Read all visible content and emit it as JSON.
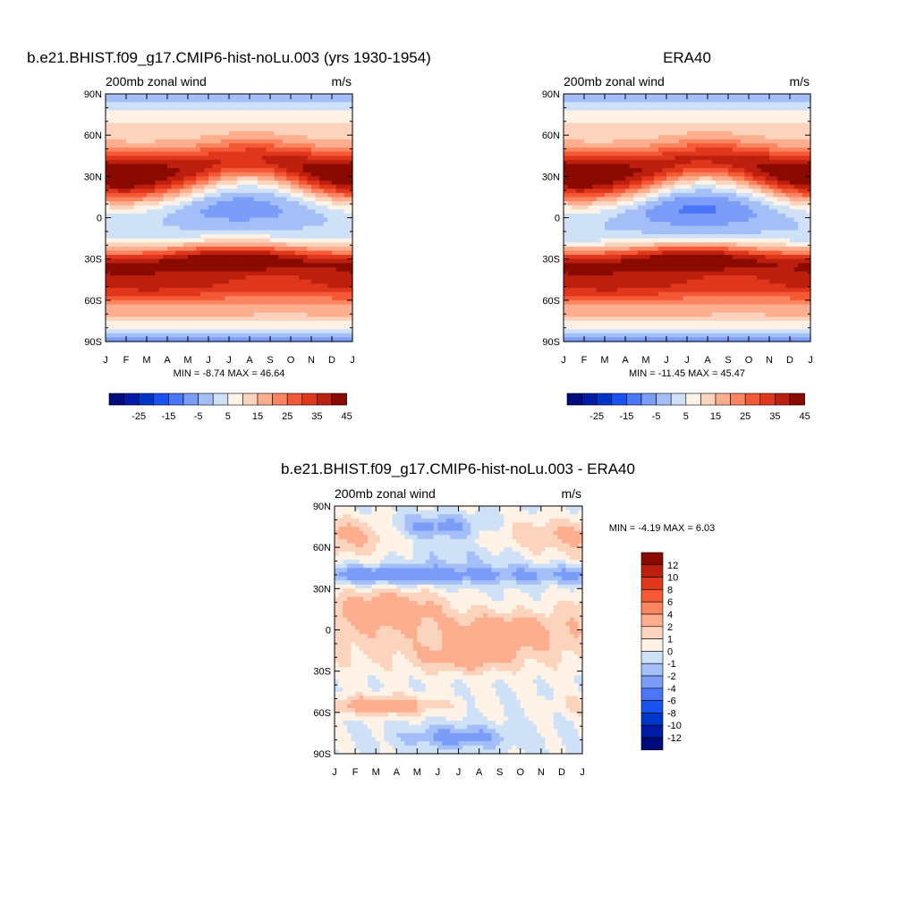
{
  "chart_data": [
    {
      "type": "heatmap",
      "title": "b.e21.BHIST.f09_g17.CMIP6-hist-noLu.003 (yrs 1930-1954)",
      "left_label": "200mb zonal wind",
      "units": "m/s",
      "x_ticks": [
        "J",
        "F",
        "M",
        "A",
        "M",
        "J",
        "J",
        "A",
        "S",
        "O",
        "N",
        "D",
        "J"
      ],
      "y_ticks": [
        "90N",
        "60N",
        "30N",
        "0",
        "30S",
        "60S",
        "90S"
      ],
      "xlim": [
        1,
        13
      ],
      "ylim": [
        -90,
        90
      ],
      "min": -8.74,
      "max": 46.64,
      "minmax_label": "MIN =  -8.74 MAX =  46.64",
      "levels": [
        -30,
        -25,
        -20,
        -15,
        -10,
        -5,
        0,
        5,
        10,
        15,
        20,
        25,
        30,
        35,
        40,
        45
      ],
      "colorbar_labels": [
        "-25",
        "-15",
        "-5",
        "5",
        "15",
        "25",
        "35",
        "45"
      ],
      "colors": [
        "#000c7d",
        "#001ba6",
        "#0035c9",
        "#1853f0",
        "#4a76f7",
        "#7b9df7",
        "#a4bff7",
        "#cfe1f7",
        "#fff2e6",
        "#fcd4bd",
        "#fcae8f",
        "#fb8461",
        "#f55835",
        "#e0361c",
        "#bd1f0e",
        "#8a0a00"
      ],
      "features": {
        "nh_jet_winter": {
          "lat": 30,
          "peak": 46.6
        },
        "sh_jet": {
          "lat": -30,
          "peak": 42
        },
        "tropical_easterlies": {
          "lat": 5,
          "min": -8.7
        }
      }
    },
    {
      "type": "heatmap",
      "title": "ERA40",
      "left_label": "200mb zonal wind",
      "units": "m/s",
      "x_ticks": [
        "J",
        "F",
        "M",
        "A",
        "M",
        "J",
        "J",
        "A",
        "S",
        "O",
        "N",
        "D",
        "J"
      ],
      "y_ticks": [
        "90N",
        "60N",
        "30N",
        "0",
        "30S",
        "60S",
        "90S"
      ],
      "xlim": [
        1,
        13
      ],
      "ylim": [
        -90,
        90
      ],
      "min": -11.45,
      "max": 45.47,
      "minmax_label": "MIN = -11.45 MAX =  45.47",
      "levels": [
        -30,
        -25,
        -20,
        -15,
        -10,
        -5,
        0,
        5,
        10,
        15,
        20,
        25,
        30,
        35,
        40,
        45
      ],
      "colorbar_labels": [
        "-25",
        "-15",
        "-5",
        "5",
        "15",
        "25",
        "35",
        "45"
      ],
      "colors": [
        "#000c7d",
        "#001ba6",
        "#0035c9",
        "#1853f0",
        "#4a76f7",
        "#7b9df7",
        "#a4bff7",
        "#cfe1f7",
        "#fff2e6",
        "#fcd4bd",
        "#fcae8f",
        "#fb8461",
        "#f55835",
        "#e0361c",
        "#bd1f0e",
        "#8a0a00"
      ],
      "features": {
        "nh_jet_winter": {
          "lat": 30,
          "peak": 45.5
        },
        "sh_jet": {
          "lat": -30,
          "peak": 40
        },
        "tropical_easterlies": {
          "lat": 5,
          "min": -11.4
        }
      }
    },
    {
      "type": "heatmap",
      "title": "b.e21.BHIST.f09_g17.CMIP6-hist-noLu.003 - ERA40",
      "left_label": "200mb zonal wind",
      "units": "m/s",
      "x_ticks": [
        "J",
        "F",
        "M",
        "A",
        "M",
        "J",
        "J",
        "A",
        "S",
        "O",
        "N",
        "D",
        "J"
      ],
      "y_ticks": [
        "90N",
        "60N",
        "30N",
        "0",
        "30S",
        "60S",
        "90S"
      ],
      "xlim": [
        1,
        13
      ],
      "ylim": [
        -90,
        90
      ],
      "min": -4.19,
      "max": 6.03,
      "minmax_label": "MIN =  -4.19 MAX =   6.03",
      "levels": [
        -12,
        -10,
        -8,
        -6,
        -4,
        -2,
        -1,
        0,
        1,
        2,
        4,
        6,
        8,
        10,
        12
      ],
      "colorbar_labels": [
        "12",
        "10",
        "8",
        "6",
        "4",
        "2",
        "1",
        "0",
        "-1",
        "-2",
        "-4",
        "-6",
        "-8",
        "-10",
        "-12"
      ],
      "colors": [
        "#000c7d",
        "#001ba6",
        "#0035c9",
        "#1853f0",
        "#4a76f7",
        "#7b9df7",
        "#a4bff7",
        "#cfe1f7",
        "#fff2e6",
        "#fcd4bd",
        "#fcae8f",
        "#fb8461",
        "#f55835",
        "#e0361c",
        "#bd1f0e",
        "#8a0a00"
      ]
    }
  ]
}
